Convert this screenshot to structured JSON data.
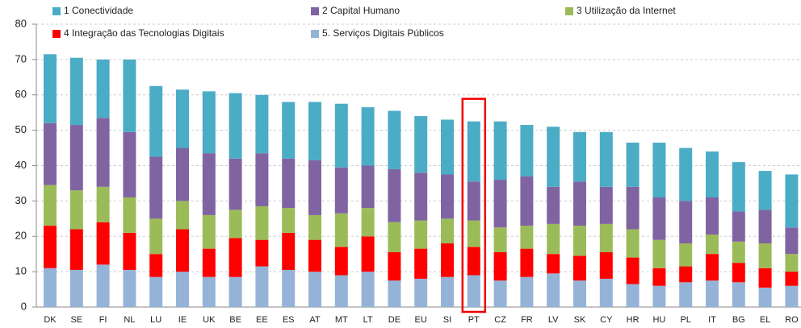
{
  "chart_data": {
    "type": "stacked_bar",
    "categories": [
      "DK",
      "SE",
      "FI",
      "NL",
      "LU",
      "IE",
      "UK",
      "BE",
      "EE",
      "ES",
      "AT",
      "MT",
      "LT",
      "DE",
      "EU",
      "SI",
      "PT",
      "CZ",
      "FR",
      "LV",
      "SK",
      "CY",
      "HR",
      "HU",
      "PL",
      "IT",
      "BG",
      "EL",
      "RO"
    ],
    "series": [
      {
        "name": "1 Conectividade",
        "color": "#4bacc6",
        "values": [
          19.5,
          19,
          16.5,
          20.5,
          20,
          16.5,
          17.5,
          18.5,
          16.5,
          16,
          16.5,
          18,
          16.5,
          16.5,
          16,
          15.5,
          17,
          16.5,
          14.5,
          17,
          14,
          15.5,
          12.5,
          15.5,
          15,
          13,
          14,
          11,
          15
        ]
      },
      {
        "name": "2 Capital Humano",
        "color": "#8064a2",
        "values": [
          17.5,
          18.5,
          19.5,
          18.5,
          17.5,
          15,
          17.5,
          14.5,
          15,
          14,
          15.5,
          13,
          12,
          15,
          13.5,
          12.5,
          11,
          13.5,
          14,
          10.5,
          12.5,
          10.5,
          12,
          12,
          12,
          10.5,
          8.5,
          9.5,
          7.5
        ]
      },
      {
        "name": "3 Utilização da Internet",
        "color": "#9bbb59",
        "values": [
          11.5,
          11,
          10,
          10,
          10,
          8,
          9.5,
          8,
          9.5,
          7,
          7,
          9.5,
          8,
          8.5,
          8,
          7,
          7.5,
          7,
          6.5,
          8.5,
          8.5,
          8,
          8,
          8,
          6.5,
          5.5,
          6,
          7,
          5
        ]
      },
      {
        "name": "4 Integração das Tecnologias Digitais",
        "color": "#ff0000",
        "values": [
          12,
          11.5,
          12,
          10.5,
          6.5,
          12,
          8,
          11,
          7.5,
          10.5,
          9,
          8,
          10,
          8,
          8.5,
          9.5,
          8,
          8,
          8,
          5.5,
          7,
          7.5,
          7.5,
          5,
          4.5,
          7.5,
          5.5,
          5.5,
          4
        ]
      },
      {
        "name": "5. Serviços Digitais Públicos",
        "color": "#95b3d7",
        "values": [
          11,
          10.5,
          12,
          10.5,
          8.5,
          10,
          8.5,
          8.5,
          11.5,
          10.5,
          10,
          9,
          10,
          7.5,
          8,
          8.5,
          9,
          7.5,
          8.5,
          9.5,
          7.5,
          8,
          6.5,
          6,
          7,
          7.5,
          7,
          5.5,
          6
        ]
      }
    ],
    "ylim": [
      0,
      80
    ],
    "yticks": [
      0,
      10,
      20,
      30,
      40,
      50,
      60,
      70,
      80
    ],
    "grid": true,
    "highlight": "PT"
  }
}
